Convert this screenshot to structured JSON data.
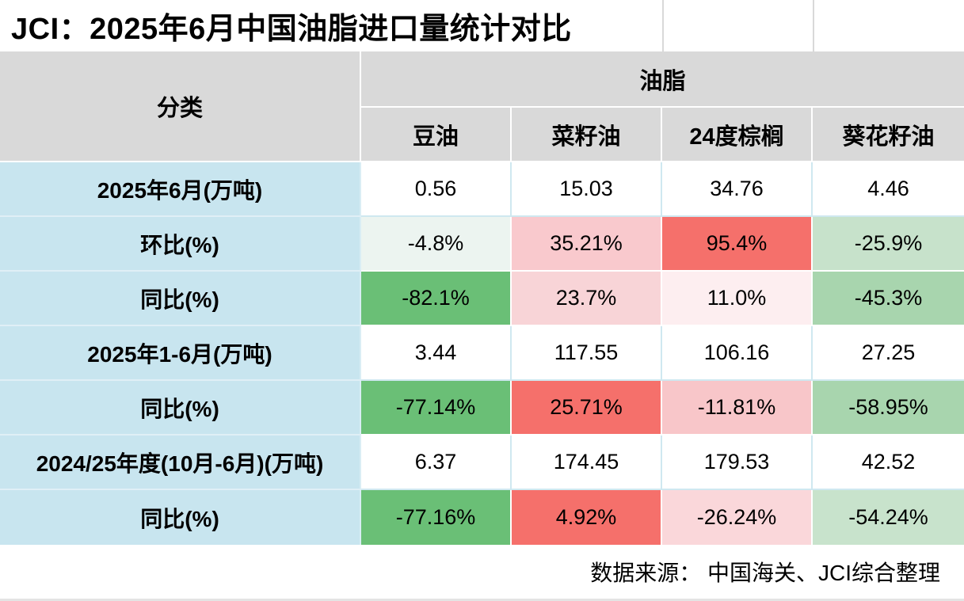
{
  "title": {
    "text": "JCI：2025年6月中国油脂进口量统计对比"
  },
  "header": {
    "category_label": "分类",
    "group_label": "油脂",
    "columns": [
      "豆油",
      "菜籽油",
      "24度棕榈",
      "葵花籽油"
    ]
  },
  "rows": [
    {
      "label": "2025年6月(万吨)",
      "cells": [
        {
          "text": "0.56",
          "bg": "#ffffff"
        },
        {
          "text": "15.03",
          "bg": "#ffffff"
        },
        {
          "text": "34.76",
          "bg": "#ffffff"
        },
        {
          "text": "4.46",
          "bg": "#ffffff"
        }
      ]
    },
    {
      "label": "环比(%)",
      "cells": [
        {
          "text": "-4.8%",
          "bg": "#ecf4f0"
        },
        {
          "text": "35.21%",
          "bg": "#f9c9cd"
        },
        {
          "text": "95.4%",
          "bg": "#f5706b"
        },
        {
          "text": "-25.9%",
          "bg": "#c7e2cb"
        }
      ]
    },
    {
      "label": "同比(%)",
      "cells": [
        {
          "text": "-82.1%",
          "bg": "#6abf76"
        },
        {
          "text": "23.7%",
          "bg": "#f8d4d7"
        },
        {
          "text": "11.0%",
          "bg": "#fdeef0"
        },
        {
          "text": "-45.3%",
          "bg": "#a8d5ae"
        }
      ]
    },
    {
      "label": "2025年1-6月(万吨)",
      "cells": [
        {
          "text": "3.44",
          "bg": "#ffffff"
        },
        {
          "text": "117.55",
          "bg": "#ffffff"
        },
        {
          "text": "106.16",
          "bg": "#ffffff"
        },
        {
          "text": "27.25",
          "bg": "#ffffff"
        }
      ]
    },
    {
      "label": "同比(%)",
      "cells": [
        {
          "text": "-77.14%",
          "bg": "#6abf76"
        },
        {
          "text": "25.71%",
          "bg": "#f5706b"
        },
        {
          "text": "-11.81%",
          "bg": "#f8c6c9"
        },
        {
          "text": "-58.95%",
          "bg": "#a8d5ae"
        }
      ]
    },
    {
      "label": "2024/25年度(10月-6月)(万吨)",
      "cells": [
        {
          "text": "6.37",
          "bg": "#ffffff"
        },
        {
          "text": "174.45",
          "bg": "#ffffff"
        },
        {
          "text": "179.53",
          "bg": "#ffffff"
        },
        {
          "text": "42.52",
          "bg": "#ffffff"
        }
      ]
    },
    {
      "label": "同比(%)",
      "cells": [
        {
          "text": "-77.16%",
          "bg": "#6abf76"
        },
        {
          "text": "4.92%",
          "bg": "#f5706b"
        },
        {
          "text": "-26.24%",
          "bg": "#fad7da"
        },
        {
          "text": "-54.24%",
          "bg": "#c8e3cc"
        }
      ]
    }
  ],
  "footer": {
    "text": "数据来源： 中国海关、JCI综合整理"
  },
  "colors": {
    "header_bg": "#d9d9d9",
    "row_label_bg": "#c8e5ef",
    "grid_line": "#cfe8f0",
    "strong_red": "#f5706b",
    "strong_green": "#6abf76"
  },
  "chart_data": {
    "type": "table",
    "title": "JCI：2025年6月中国油脂进口量统计对比",
    "column_group_label": "油脂",
    "row_group_label": "分类",
    "columns": [
      "豆油",
      "菜籽油",
      "24度棕榈",
      "葵花籽油"
    ],
    "rows": [
      {
        "label": "2025年6月(万吨)",
        "values": [
          0.56,
          15.03,
          34.76,
          4.46
        ]
      },
      {
        "label": "环比(%)",
        "values": [
          -4.8,
          35.21,
          95.4,
          -25.9
        ]
      },
      {
        "label": "同比(%)",
        "values": [
          -82.1,
          23.7,
          11.0,
          -45.3
        ]
      },
      {
        "label": "2025年1-6月(万吨)",
        "values": [
          3.44,
          117.55,
          106.16,
          27.25
        ]
      },
      {
        "label": "同比(%)",
        "values": [
          -77.14,
          25.71,
          -11.81,
          -58.95
        ]
      },
      {
        "label": "2024/25年度(10月-6月)(万吨)",
        "values": [
          6.37,
          174.45,
          179.53,
          42.52
        ]
      },
      {
        "label": "同比(%)",
        "values": [
          -77.16,
          4.92,
          -26.24,
          -54.24
        ]
      }
    ],
    "source_note": "数据来源： 中国海关、JCI综合整理",
    "color_coding": "per-row heat scale: max positive = red, most negative = green"
  }
}
